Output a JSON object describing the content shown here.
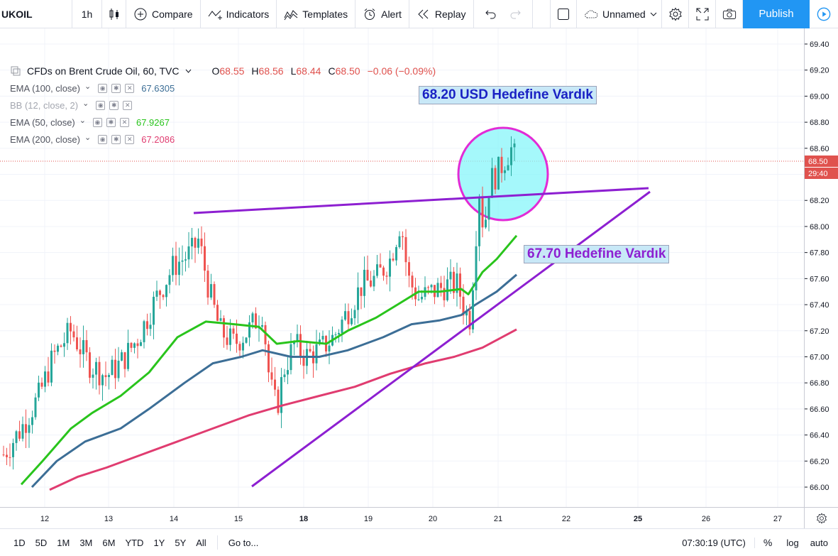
{
  "toolbar": {
    "symbol": "UKOIL",
    "interval": "1h",
    "compare": "Compare",
    "indicators": "Indicators",
    "templates": "Templates",
    "alert": "Alert",
    "replay": "Replay",
    "layout_name": "Unnamed",
    "publish": "Publish"
  },
  "legend": {
    "title": "CFDs on Brent Crude Oil, 60, TVC",
    "ohlc": {
      "o": "68.55",
      "h": "68.56",
      "l": "68.44",
      "c": "68.50",
      "chg": "−0.06 (−0.09%)"
    },
    "o_label": "O",
    "h_label": "H",
    "l_label": "L",
    "c_label": "C",
    "indicators": [
      {
        "label": "EMA (100, close)",
        "value": "67.6305",
        "color": "#3c6e96"
      },
      {
        "label": "BB (12, close, 2)",
        "value": "",
        "color": "#9598a1"
      },
      {
        "label": "EMA (50, close)",
        "value": "67.9267",
        "color": "#29c41c"
      },
      {
        "label": "EMA (200, close)",
        "value": "67.2086",
        "color": "#e03c70"
      }
    ]
  },
  "annotations": {
    "top": "68.20 USD Hedefine Vardık",
    "mid": "67.70 Hedefine Vardık"
  },
  "price_scale": {
    "ticks": [
      "69.40",
      "69.20",
      "69.00",
      "68.80",
      "68.60",
      "68.40",
      "68.20",
      "68.00",
      "67.80",
      "67.60",
      "67.40",
      "67.20",
      "67.00",
      "66.80",
      "66.60",
      "66.40",
      "66.20",
      "66.00"
    ],
    "last_price": "68.50",
    "countdown": "29:40"
  },
  "time_scale": {
    "ticks": [
      "12",
      "13",
      "14",
      "15",
      "18",
      "19",
      "20",
      "21",
      "22",
      "25",
      "26",
      "27"
    ]
  },
  "bottom_bar": {
    "ranges": [
      "1D",
      "5D",
      "1M",
      "3M",
      "6M",
      "YTD",
      "1Y",
      "5Y",
      "All"
    ],
    "goto": "Go to...",
    "clock": "07:30:19 (UTC)",
    "percent": "%",
    "log": "log",
    "auto": "auto"
  },
  "colors": {
    "ema50": "#29c41c",
    "ema100": "#3c6e96",
    "ema200": "#e03c70",
    "up": "#26a69a",
    "down": "#ef5350",
    "trend": "#8d1fd1",
    "circle_fill": "#87f5fa",
    "circle_stroke": "#e22bd6",
    "accent": "#2196f3"
  }
}
